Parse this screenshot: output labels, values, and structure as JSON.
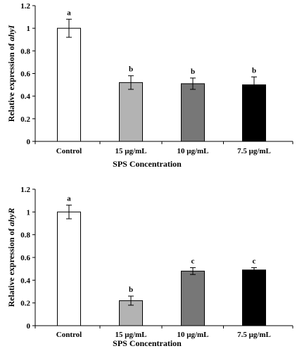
{
  "chart_data": [
    {
      "type": "bar",
      "categories": [
        "Control",
        "15 μg/mL",
        "10 μg/mL",
        "7.5 μg/mL"
      ],
      "values": [
        1.0,
        0.52,
        0.51,
        0.5
      ],
      "errors": [
        0.08,
        0.06,
        0.05,
        0.07
      ],
      "significance": [
        "a",
        "b",
        "b",
        "b"
      ],
      "bar_colors": [
        "#ffffff",
        "#b3b3b3",
        "#777777",
        "#000000"
      ],
      "ylabel_prefix": "Relative expression  of ",
      "ylabel_gene": "ahyI",
      "xlabel": "SPS Concentration",
      "ylim": [
        0,
        1.2
      ],
      "yticks": [
        "0",
        "0.2",
        "0.4",
        "0.6",
        "0.8",
        "1",
        "1.2"
      ],
      "grid": false
    },
    {
      "type": "bar",
      "categories": [
        "Control",
        "15 μg/mL",
        "10 μg/mL",
        "7.5 μg/mL"
      ],
      "values": [
        1.0,
        0.22,
        0.48,
        0.49
      ],
      "errors": [
        0.06,
        0.04,
        0.03,
        0.02
      ],
      "significance": [
        "a",
        "b",
        "c",
        "c"
      ],
      "bar_colors": [
        "#ffffff",
        "#b3b3b3",
        "#777777",
        "#000000"
      ],
      "ylabel_prefix": "Relative expression  of ",
      "ylabel_gene": "ahyR",
      "xlabel": "SPS Concentration",
      "ylim": [
        0,
        1.2
      ],
      "yticks": [
        "0",
        "0.2",
        "0.4",
        "0.6",
        "0.8",
        "1",
        "1.2"
      ],
      "grid": false
    }
  ]
}
